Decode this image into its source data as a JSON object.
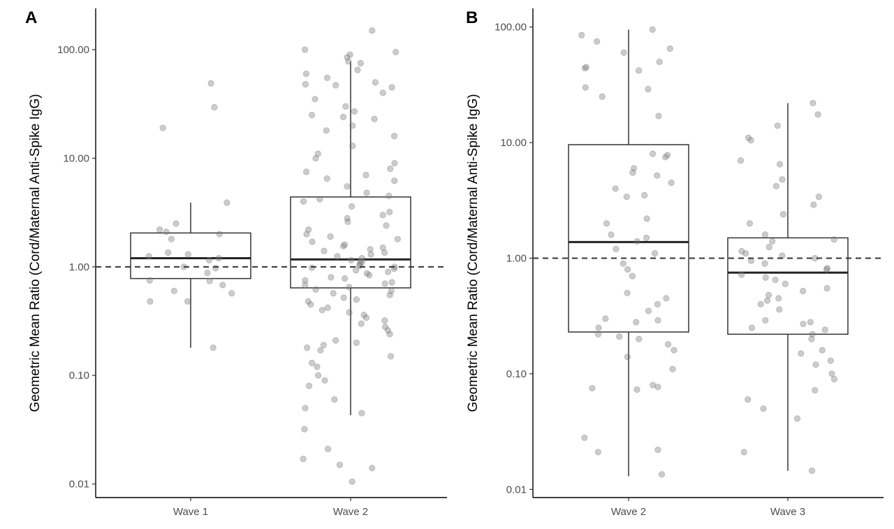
{
  "chart_data": [
    {
      "type": "box",
      "panel_label": "A",
      "ylabel": "Geometric Mean Ratio (Cord/Maternal Anti-Spike IgG)",
      "xlabel": "",
      "y_scale": "log",
      "ylim": [
        0.0075,
        240
      ],
      "y_ticks": [
        0.01,
        0.1,
        1,
        10,
        100
      ],
      "y_tick_labels": [
        "0.01",
        "0.10",
        "1.00",
        "10.00",
        "100.00"
      ],
      "reference_line": 1.0,
      "categories": [
        "Wave 1",
        "Wave 2"
      ],
      "boxes": [
        {
          "category": "Wave 1",
          "whisker_low": 0.18,
          "q1": 0.78,
          "median": 1.2,
          "q3": 2.05,
          "whisker_high": 3.9
        },
        {
          "category": "Wave 2",
          "whisker_low": 0.043,
          "q1": 0.64,
          "median": 1.17,
          "q3": 4.4,
          "whisker_high": 78
        }
      ],
      "points": [
        {
          "category": "Wave 1",
          "values": [
            49,
            19,
            29.5,
            2.5,
            2.0,
            1.8,
            2.1,
            2.2,
            1.35,
            1.3,
            1.15,
            1.2,
            1.25,
            1.0,
            0.97,
            0.88,
            0.74,
            0.75,
            0.68,
            0.57,
            0.6,
            0.48,
            0.48,
            0.18,
            3.9
          ]
        },
        {
          "category": "Wave 2",
          "values": [
            150,
            100,
            95,
            90,
            85,
            78,
            75,
            65,
            60,
            55,
            50,
            48,
            47,
            45,
            40,
            35,
            30,
            27,
            25,
            24,
            23,
            20,
            18,
            16,
            13,
            11,
            10,
            9,
            8,
            7.5,
            7,
            6.5,
            6.2,
            5.5,
            4.8,
            4.5,
            4.2,
            4.0,
            3.6,
            3.2,
            3.0,
            2.8,
            2.6,
            2.4,
            2.2,
            2.0,
            1.9,
            1.8,
            1.7,
            1.6,
            1.55,
            1.5,
            1.45,
            1.4,
            1.35,
            1.3,
            1.25,
            1.2,
            1.15,
            1.12,
            1.1,
            1.05,
            1.02,
            1.0,
            0.98,
            0.96,
            0.93,
            0.9,
            0.87,
            0.84,
            0.8,
            0.78,
            0.75,
            0.72,
            0.7,
            0.68,
            0.65,
            0.62,
            0.6,
            0.57,
            0.55,
            0.52,
            0.5,
            0.48,
            0.45,
            0.42,
            0.4,
            0.38,
            0.36,
            0.34,
            0.32,
            0.3,
            0.28,
            0.26,
            0.24,
            0.21,
            0.2,
            0.19,
            0.18,
            0.17,
            0.15,
            0.13,
            0.12,
            0.1,
            0.09,
            0.08,
            0.06,
            0.05,
            0.045,
            0.032,
            0.021,
            0.017,
            0.015,
            0.014,
            0.0105
          ]
        }
      ]
    },
    {
      "type": "box",
      "panel_label": "B",
      "ylabel": "Geometric Mean Ratio (Cord/Maternal Anti-Spike IgG)",
      "xlabel": "",
      "y_scale": "log",
      "ylim": [
        0.0085,
        145
      ],
      "y_ticks": [
        0.01,
        0.1,
        1,
        10,
        100
      ],
      "y_tick_labels": [
        "0.01",
        "0.10",
        "1.00",
        "10.00",
        "100.00"
      ],
      "reference_line": 1.0,
      "categories": [
        "Wave 2",
        "Wave 3"
      ],
      "boxes": [
        {
          "category": "Wave 2",
          "whisker_low": 0.013,
          "q1": 0.23,
          "median": 1.38,
          "q3": 9.6,
          "whisker_high": 95
        },
        {
          "category": "Wave 3",
          "whisker_low": 0.0145,
          "q1": 0.22,
          "median": 0.75,
          "q3": 1.5,
          "whisker_high": 22
        }
      ],
      "points": [
        {
          "category": "Wave 2",
          "values": [
            95,
            85,
            75,
            65,
            60,
            50,
            45,
            44,
            42,
            30,
            29,
            25,
            17,
            8,
            7.8,
            7.5,
            6,
            5.5,
            5.2,
            4.5,
            4,
            3.5,
            3.4,
            2.2,
            2.0,
            1.6,
            1.5,
            1.4,
            1.2,
            1.1,
            0.9,
            0.8,
            0.7,
            0.5,
            0.45,
            0.4,
            0.35,
            0.3,
            0.29,
            0.28,
            0.25,
            0.22,
            0.21,
            0.2,
            0.18,
            0.16,
            0.14,
            0.11,
            0.08,
            0.077,
            0.075,
            0.073,
            0.028,
            0.022,
            0.021,
            0.0135
          ]
        },
        {
          "category": "Wave 3",
          "values": [
            22,
            17.5,
            14,
            11,
            10.5,
            7,
            6.5,
            4.8,
            4.2,
            3.4,
            2.9,
            2.4,
            2.0,
            1.6,
            1.45,
            1.4,
            1.25,
            1.15,
            1.1,
            1.05,
            1.0,
            0.95,
            0.9,
            0.82,
            0.8,
            0.72,
            0.68,
            0.65,
            0.6,
            0.55,
            0.52,
            0.48,
            0.45,
            0.43,
            0.4,
            0.36,
            0.29,
            0.28,
            0.27,
            0.25,
            0.24,
            0.22,
            0.2,
            0.16,
            0.15,
            0.13,
            0.12,
            0.1,
            0.09,
            0.072,
            0.06,
            0.05,
            0.041,
            0.021,
            0.0145
          ]
        }
      ]
    }
  ]
}
